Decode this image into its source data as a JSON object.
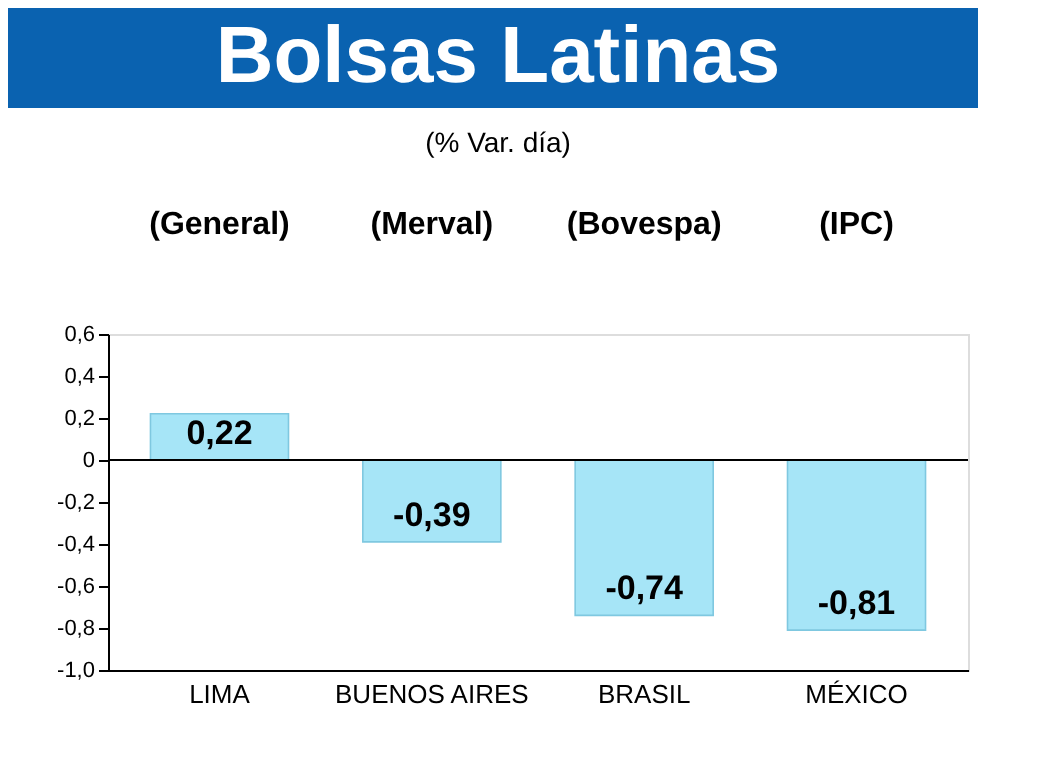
{
  "chart_data": {
    "type": "bar",
    "title": "Bolsas Latinas",
    "subtitle": "(% Var. día)",
    "categories": [
      "LIMA",
      "BUENOS AIRES",
      "BRASIL",
      "MÉXICO"
    ],
    "values": [
      0.22,
      -0.39,
      -0.74,
      -0.81
    ],
    "value_labels": [
      "0,22",
      "-0,39",
      "-0,74",
      "-0,81"
    ],
    "color": "#a6e5f7",
    "annotations": [
      "(General)",
      "(Merval)",
      "(Bovespa)",
      "(IPC)"
    ],
    "ylim": [
      -1.0,
      0.6
    ],
    "yticks": [
      {
        "value": 0.6,
        "label": "0,6"
      },
      {
        "value": 0.4,
        "label": "0,4"
      },
      {
        "value": 0.2,
        "label": "0,2"
      },
      {
        "value": 0,
        "label": "0"
      },
      {
        "value": -0.2,
        "label": "-0,2"
      },
      {
        "value": -0.4,
        "label": "-0,4"
      },
      {
        "value": -0.6,
        "label": "-0,6"
      },
      {
        "value": -0.8,
        "label": "-0,8"
      },
      {
        "value": -1.0,
        "label": "-1,0"
      }
    ],
    "ref_lines": [
      {
        "axis": "y",
        "value": 0,
        "color": "#000000"
      }
    ],
    "grid": false
  }
}
